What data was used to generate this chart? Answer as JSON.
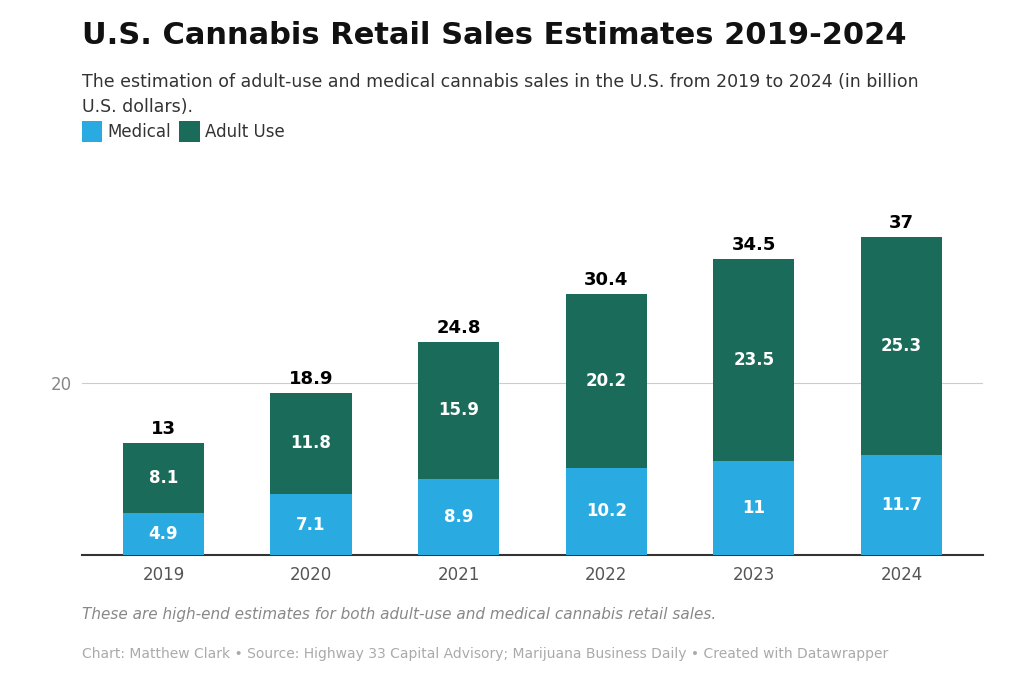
{
  "title": "U.S. Cannabis Retail Sales Estimates 2019-2024",
  "subtitle": "The estimation of adult-use and medical cannabis sales in the U.S. from 2019 to 2024 (in billion\nU.S. dollars).",
  "footnote_italic": "These are high-end estimates for both adult-use and medical cannabis retail sales.",
  "footnote_regular": "Chart: Matthew Clark • Source: Highway 33 Capital Advisory; Marijuana Business Daily • Created with Datawrapper",
  "years": [
    "2019",
    "2020",
    "2021",
    "2022",
    "2023",
    "2024"
  ],
  "medical": [
    4.9,
    7.1,
    8.9,
    10.2,
    11.0,
    11.7
  ],
  "adult_use": [
    8.1,
    11.8,
    15.9,
    20.2,
    23.5,
    25.3
  ],
  "totals": [
    13.0,
    18.9,
    24.8,
    30.4,
    34.5,
    37.0
  ],
  "medical_labels": [
    "4.9",
    "7.1",
    "8.9",
    "10.2",
    "11",
    "11.7"
  ],
  "adult_use_labels": [
    "8.1",
    "11.8",
    "15.9",
    "20.2",
    "23.5",
    "25.3"
  ],
  "total_labels": [
    "13",
    "18.9",
    "24.8",
    "30.4",
    "34.5",
    "37"
  ],
  "color_medical": "#29abe2",
  "color_adult_use": "#1a6b5a",
  "color_background": "#ffffff",
  "ytick_label": "20",
  "ylim": [
    0,
    42
  ],
  "legend_medical": "Medical",
  "legend_adult_use": "Adult Use",
  "title_fontsize": 22,
  "subtitle_fontsize": 12.5,
  "bar_label_fontsize": 12,
  "total_label_fontsize": 13,
  "axis_tick_fontsize": 12
}
